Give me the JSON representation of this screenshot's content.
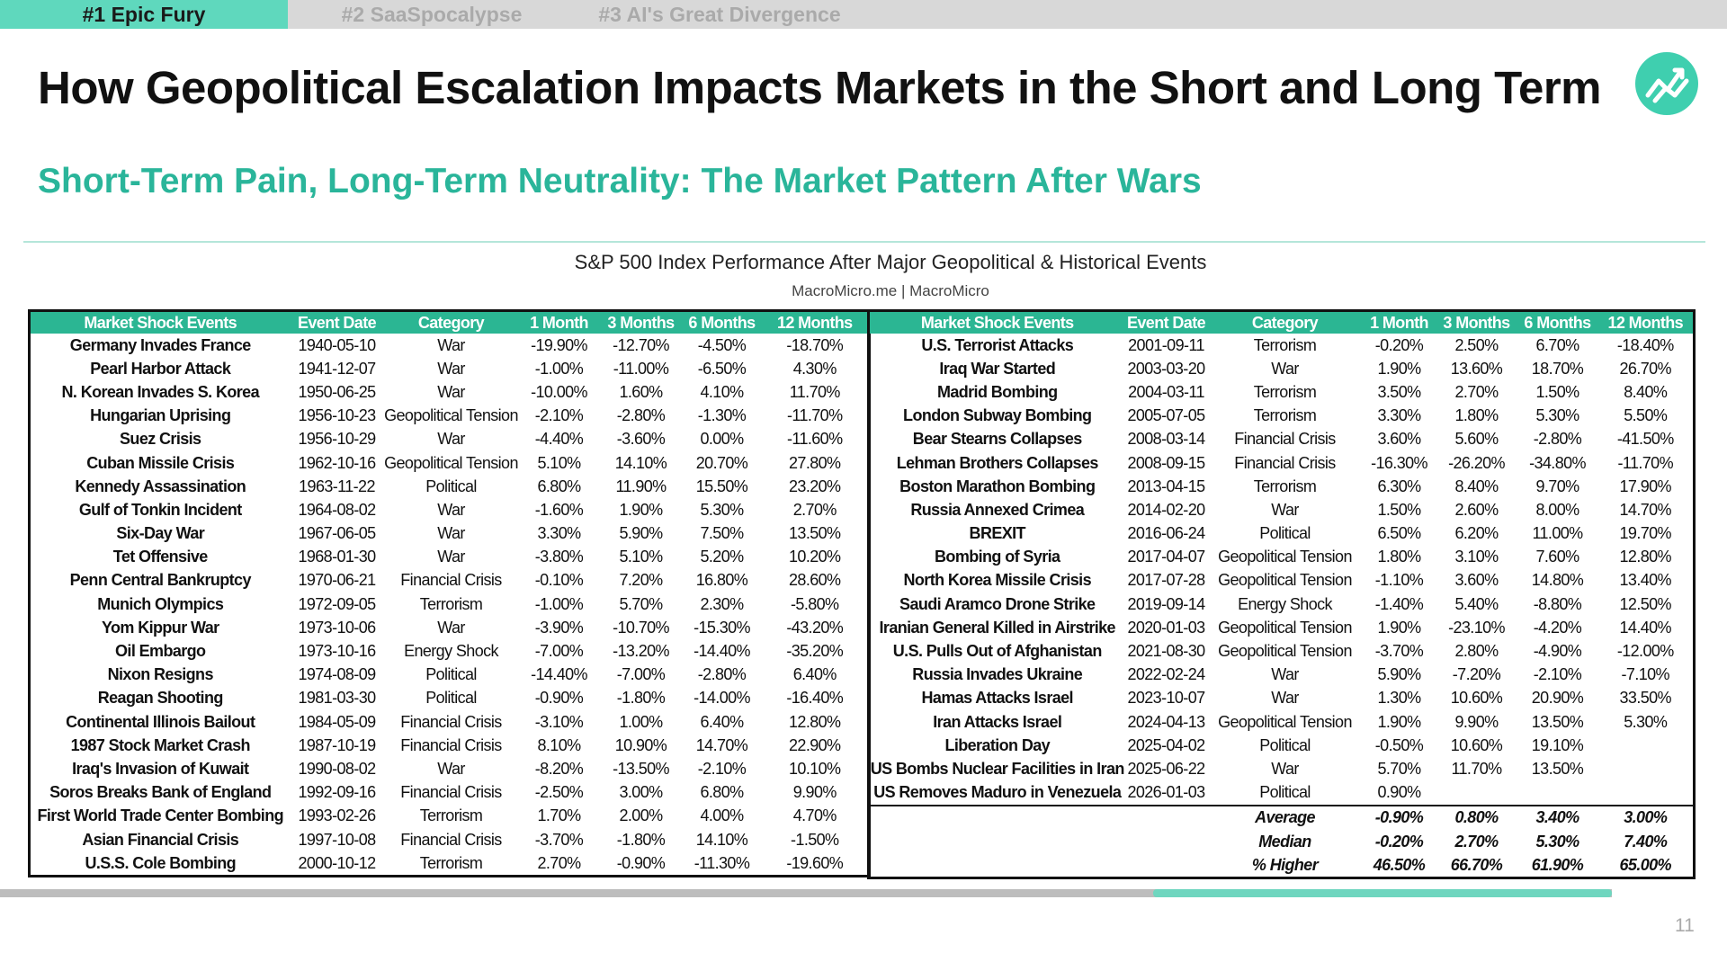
{
  "tabs": [
    {
      "label": "#1 Epic Fury",
      "active": true
    },
    {
      "label": "#2 SaaSpocalypse",
      "active": false
    },
    {
      "label": "#3 AI's Great Divergence",
      "active": false
    }
  ],
  "page": {
    "title": "How Geopolitical Escalation Impacts Markets in the Short and Long Term",
    "subtitle": "Short-Term Pain, Long-Term Neutrality: The Market Pattern After Wars",
    "page_number": "11"
  },
  "colors": {
    "accent": "#2bb693",
    "tab_active": "#5fd8bd",
    "subtitle": "#2ab59a"
  },
  "icons": {
    "logo": "chart-line-logo-icon"
  },
  "table": {
    "title": "S&P 500 Index Performance After Major Geopolitical & Historical Events",
    "source": "MacroMicro.me | MacroMicro",
    "headers": [
      "Market Shock Events",
      "Event Date",
      "Category",
      "1 Month",
      "3 Months",
      "6 Months",
      "12 Months"
    ],
    "left_rows": [
      [
        "Germany Invades France",
        "1940-05-10",
        "War",
        "-19.90%",
        "-12.70%",
        "-4.50%",
        "-18.70%"
      ],
      [
        "Pearl Harbor Attack",
        "1941-12-07",
        "War",
        "-1.00%",
        "-11.00%",
        "-6.50%",
        "4.30%"
      ],
      [
        "N. Korean Invades S. Korea",
        "1950-06-25",
        "War",
        "-10.00%",
        "1.60%",
        "4.10%",
        "11.70%"
      ],
      [
        "Hungarian Uprising",
        "1956-10-23",
        "Geopolitical Tension",
        "-2.10%",
        "-2.80%",
        "-1.30%",
        "-11.70%"
      ],
      [
        "Suez Crisis",
        "1956-10-29",
        "War",
        "-4.40%",
        "-3.60%",
        "0.00%",
        "-11.60%"
      ],
      [
        "Cuban Missile Crisis",
        "1962-10-16",
        "Geopolitical Tension",
        "5.10%",
        "14.10%",
        "20.70%",
        "27.80%"
      ],
      [
        "Kennedy Assassination",
        "1963-11-22",
        "Political",
        "6.80%",
        "11.90%",
        "15.50%",
        "23.20%"
      ],
      [
        "Gulf of Tonkin Incident",
        "1964-08-02",
        "War",
        "-1.60%",
        "1.90%",
        "5.30%",
        "2.70%"
      ],
      [
        "Six-Day War",
        "1967-06-05",
        "War",
        "3.30%",
        "5.90%",
        "7.50%",
        "13.50%"
      ],
      [
        "Tet Offensive",
        "1968-01-30",
        "War",
        "-3.80%",
        "5.10%",
        "5.20%",
        "10.20%"
      ],
      [
        "Penn Central Bankruptcy",
        "1970-06-21",
        "Financial Crisis",
        "-0.10%",
        "7.20%",
        "16.80%",
        "28.60%"
      ],
      [
        "Munich Olympics",
        "1972-09-05",
        "Terrorism",
        "-1.00%",
        "5.70%",
        "2.30%",
        "-5.80%"
      ],
      [
        "Yom Kippur War",
        "1973-10-06",
        "War",
        "-3.90%",
        "-10.70%",
        "-15.30%",
        "-43.20%"
      ],
      [
        "Oil Embargo",
        "1973-10-16",
        "Energy Shock",
        "-7.00%",
        "-13.20%",
        "-14.40%",
        "-35.20%"
      ],
      [
        "Nixon Resigns",
        "1974-08-09",
        "Political",
        "-14.40%",
        "-7.00%",
        "-2.80%",
        "6.40%"
      ],
      [
        "Reagan Shooting",
        "1981-03-30",
        "Political",
        "-0.90%",
        "-1.80%",
        "-14.00%",
        "-16.40%"
      ],
      [
        "Continental Illinois Bailout",
        "1984-05-09",
        "Financial Crisis",
        "-3.10%",
        "1.00%",
        "6.40%",
        "12.80%"
      ],
      [
        "1987 Stock Market Crash",
        "1987-10-19",
        "Financial Crisis",
        "8.10%",
        "10.90%",
        "14.70%",
        "22.90%"
      ],
      [
        "Iraq's Invasion of Kuwait",
        "1990-08-02",
        "War",
        "-8.20%",
        "-13.50%",
        "-2.10%",
        "10.10%"
      ],
      [
        "Soros Breaks Bank of England",
        "1992-09-16",
        "Financial Crisis",
        "-2.50%",
        "3.00%",
        "6.80%",
        "9.90%"
      ],
      [
        "First World Trade Center Bombing",
        "1993-02-26",
        "Terrorism",
        "1.70%",
        "2.00%",
        "4.00%",
        "4.70%"
      ],
      [
        "Asian Financial Crisis",
        "1997-10-08",
        "Financial Crisis",
        "-3.70%",
        "-1.80%",
        "14.10%",
        "-1.50%"
      ],
      [
        "U.S.S. Cole Bombing",
        "2000-10-12",
        "Terrorism",
        "2.70%",
        "-0.90%",
        "-11.30%",
        "-19.60%"
      ]
    ],
    "right_rows": [
      [
        "U.S. Terrorist Attacks",
        "2001-09-11",
        "Terrorism",
        "-0.20%",
        "2.50%",
        "6.70%",
        "-18.40%"
      ],
      [
        "Iraq War Started",
        "2003-03-20",
        "War",
        "1.90%",
        "13.60%",
        "18.70%",
        "26.70%"
      ],
      [
        "Madrid Bombing",
        "2004-03-11",
        "Terrorism",
        "3.50%",
        "2.70%",
        "1.50%",
        "8.40%"
      ],
      [
        "London Subway Bombing",
        "2005-07-05",
        "Terrorism",
        "3.30%",
        "1.80%",
        "5.30%",
        "5.50%"
      ],
      [
        "Bear Stearns Collapses",
        "2008-03-14",
        "Financial Crisis",
        "3.60%",
        "5.60%",
        "-2.80%",
        "-41.50%"
      ],
      [
        "Lehman Brothers Collapses",
        "2008-09-15",
        "Financial Crisis",
        "-16.30%",
        "-26.20%",
        "-34.80%",
        "-11.70%"
      ],
      [
        "Boston Marathon Bombing",
        "2013-04-15",
        "Terrorism",
        "6.30%",
        "8.40%",
        "9.70%",
        "17.90%"
      ],
      [
        "Russia Annexed Crimea",
        "2014-02-20",
        "War",
        "1.50%",
        "2.60%",
        "8.00%",
        "14.70%"
      ],
      [
        "BREXIT",
        "2016-06-24",
        "Political",
        "6.50%",
        "6.20%",
        "11.00%",
        "19.70%"
      ],
      [
        "Bombing of Syria",
        "2017-04-07",
        "Geopolitical Tension",
        "1.80%",
        "3.10%",
        "7.60%",
        "12.80%"
      ],
      [
        "North Korea Missile Crisis",
        "2017-07-28",
        "Geopolitical Tension",
        "-1.10%",
        "3.60%",
        "14.80%",
        "13.40%"
      ],
      [
        "Saudi Aramco Drone Strike",
        "2019-09-14",
        "Energy Shock",
        "-1.40%",
        "5.40%",
        "-8.80%",
        "12.50%"
      ],
      [
        "Iranian General Killed in Airstrike",
        "2020-01-03",
        "Geopolitical Tension",
        "1.90%",
        "-23.10%",
        "-4.20%",
        "14.40%"
      ],
      [
        "U.S. Pulls Out of Afghanistan",
        "2021-08-30",
        "Geopolitical Tension",
        "-3.70%",
        "2.80%",
        "-4.90%",
        "-12.00%"
      ],
      [
        "Russia Invades Ukraine",
        "2022-02-24",
        "War",
        "5.90%",
        "-7.20%",
        "-2.10%",
        "-7.10%"
      ],
      [
        "Hamas Attacks Israel",
        "2023-10-07",
        "War",
        "1.30%",
        "10.60%",
        "20.90%",
        "33.50%"
      ],
      [
        "Iran Attacks Israel",
        "2024-04-13",
        "Geopolitical Tension",
        "1.90%",
        "9.90%",
        "13.50%",
        "5.30%"
      ],
      [
        "Liberation Day",
        "2025-04-02",
        "Political",
        "-0.50%",
        "10.60%",
        "19.10%",
        ""
      ],
      [
        "US Bombs Nuclear Facilities in Iran",
        "2025-06-22",
        "War",
        "5.70%",
        "11.70%",
        "13.50%",
        ""
      ],
      [
        "US Removes Maduro in Venezuela",
        "2026-01-03",
        "Political",
        "0.90%",
        "",
        "",
        ""
      ]
    ],
    "summary_rows": [
      [
        "",
        "",
        "Average",
        "-0.90%",
        "0.80%",
        "3.40%",
        "3.00%"
      ],
      [
        "",
        "",
        "Median",
        "-0.20%",
        "2.70%",
        "5.30%",
        "7.40%"
      ],
      [
        "",
        "",
        "% Higher",
        "46.50%",
        "66.70%",
        "61.90%",
        "65.00%"
      ]
    ]
  }
}
